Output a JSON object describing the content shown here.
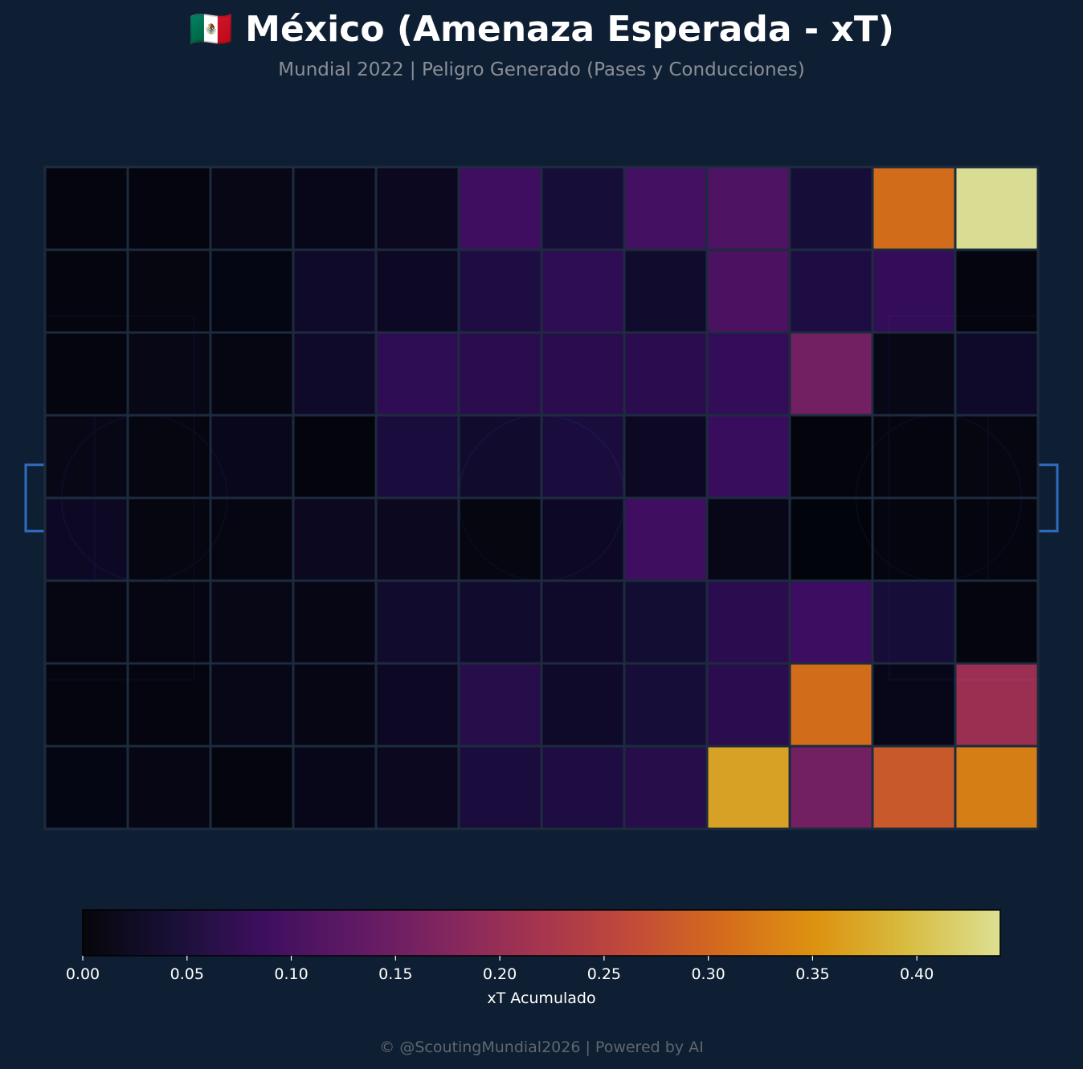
{
  "header": {
    "title": "🇲🇽 México (Amenaza Esperada - xT)",
    "subtitle": "Mundial 2022 | Peligro Generado (Pases y Conducciones)"
  },
  "footer": {
    "credit": "© @ScoutingMundial2026 | Powered by AI"
  },
  "chart_data": {
    "type": "heatmap",
    "title": "🇲🇽 México (Amenaza Esperada - xT)",
    "subtitle": "Mundial 2022 | Peligro Generado (Pases y Conducciones)",
    "grid": {
      "rows": 8,
      "cols": 12
    },
    "colormap": "inferno",
    "colorbar": {
      "label": "xT Acumulado",
      "range": [
        0,
        0.44
      ],
      "ticks": [
        0.0,
        0.05,
        0.1,
        0.15,
        0.2,
        0.25,
        0.3,
        0.35,
        0.4
      ],
      "tick_labels": [
        "0.00",
        "0.05",
        "0.10",
        "0.15",
        "0.20",
        "0.25",
        "0.30",
        "0.35",
        "0.40"
      ]
    },
    "values": [
      [
        0.003,
        0.004,
        0.012,
        0.014,
        0.02,
        0.095,
        0.045,
        0.1,
        0.115,
        0.045,
        0.31,
        0.44
      ],
      [
        0.004,
        0.006,
        0.008,
        0.03,
        0.025,
        0.055,
        0.075,
        0.035,
        0.11,
        0.055,
        0.08,
        0.003
      ],
      [
        0.003,
        0.012,
        0.007,
        0.03,
        0.075,
        0.07,
        0.07,
        0.07,
        0.08,
        0.16,
        0.012,
        0.03
      ],
      [
        0.012,
        0.006,
        0.016,
        0.002,
        0.05,
        0.035,
        0.05,
        0.025,
        0.085,
        0.002,
        0.004,
        0.006
      ],
      [
        0.025,
        0.006,
        0.007,
        0.02,
        0.02,
        0.006,
        0.025,
        0.095,
        0.013,
        0.001,
        0.003,
        0.004
      ],
      [
        0.007,
        0.007,
        0.012,
        0.009,
        0.035,
        0.035,
        0.03,
        0.04,
        0.07,
        0.09,
        0.045,
        0.003
      ],
      [
        0.004,
        0.003,
        0.013,
        0.009,
        0.025,
        0.065,
        0.03,
        0.045,
        0.07,
        0.31,
        0.015,
        0.21
      ],
      [
        0.008,
        0.009,
        0.005,
        0.014,
        0.02,
        0.05,
        0.055,
        0.065,
        0.37,
        0.16,
        0.285,
        0.33
      ]
    ]
  }
}
